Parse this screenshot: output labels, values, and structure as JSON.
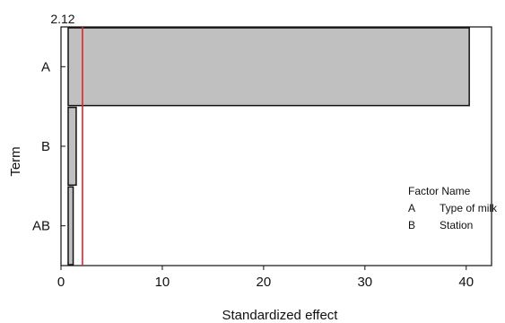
{
  "chart_data": {
    "type": "bar",
    "orientation": "horizontal",
    "title": "",
    "xlabel": "Standardized effect",
    "ylabel": "Term",
    "categories": [
      "A",
      "B",
      "AB"
    ],
    "values": [
      40.3,
      1.5,
      1.2
    ],
    "xlim": [
      0,
      42.5
    ],
    "xticks": [
      "0",
      "10",
      "20",
      "30",
      "40"
    ],
    "reference_line": {
      "value": 2.12,
      "label": "2.12",
      "color": "#e0242c"
    },
    "bar_color": "#c0c0c0",
    "grid": false,
    "legend": {
      "position": "right",
      "header": "Factor Name",
      "entries": [
        {
          "factor": "A",
          "name": "Type of milk"
        },
        {
          "factor": "B",
          "name": "Station"
        }
      ]
    }
  }
}
